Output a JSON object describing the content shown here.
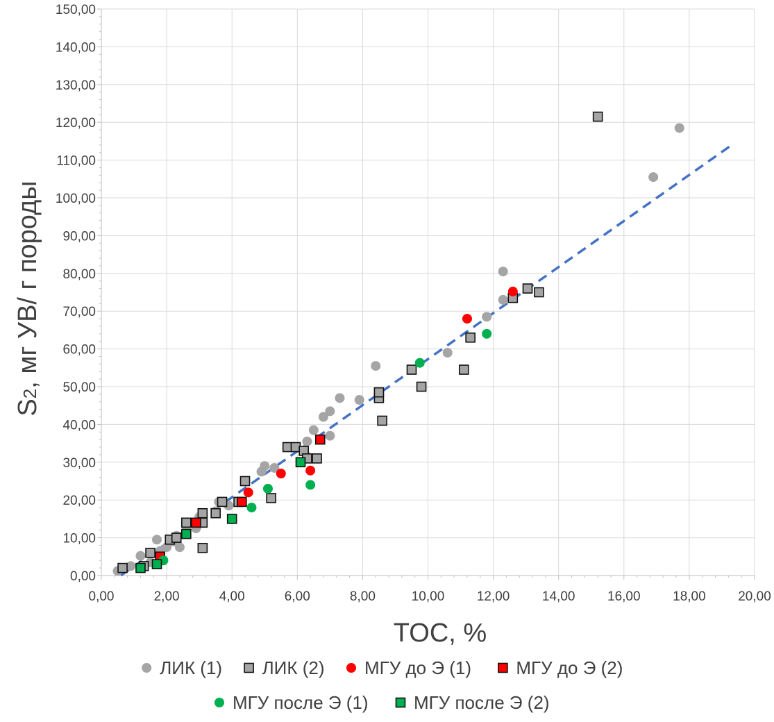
{
  "chart_data": {
    "type": "scatter",
    "xlabel": "TOC, %",
    "ylabel_main": "S",
    "ylabel_sub": "2",
    "ylabel_rest": ", мг УВ/ г породы",
    "xlim": [
      0,
      20
    ],
    "ylim": [
      0,
      150
    ],
    "x_ticks": [
      "0,00",
      "2,00",
      "4,00",
      "6,00",
      "8,00",
      "10,00",
      "12,00",
      "14,00",
      "16,00",
      "18,00",
      "20,00"
    ],
    "y_ticks": [
      "0,00",
      "10,00",
      "20,00",
      "30,00",
      "40,00",
      "50,00",
      "60,00",
      "70,00",
      "80,00",
      "90,00",
      "100,00",
      "110,00",
      "120,00",
      "130,00",
      "140,00",
      "150,00"
    ],
    "grid": true,
    "legend_position": "bottom",
    "series": [
      {
        "name": "ЛИК (1)",
        "marker": "circle",
        "color": "#a5a5a5",
        "border": "none",
        "points": [
          [
            0.5,
            1.2
          ],
          [
            0.9,
            2.5
          ],
          [
            1.2,
            5.2
          ],
          [
            1.5,
            3.5
          ],
          [
            1.7,
            9.5
          ],
          [
            1.8,
            6.5
          ],
          [
            2.0,
            7.5
          ],
          [
            2.2,
            9.0
          ],
          [
            2.3,
            10.5
          ],
          [
            2.4,
            7.5
          ],
          [
            2.6,
            12.0
          ],
          [
            2.9,
            12.5
          ],
          [
            3.0,
            15.5
          ],
          [
            3.5,
            17.0
          ],
          [
            3.6,
            19.5
          ],
          [
            3.9,
            18.5
          ],
          [
            4.3,
            19.5
          ],
          [
            4.9,
            27.5
          ],
          [
            5.0,
            29.0
          ],
          [
            5.3,
            28.5
          ],
          [
            6.3,
            35.5
          ],
          [
            6.3,
            31.5
          ],
          [
            6.5,
            38.5
          ],
          [
            6.7,
            36.0
          ],
          [
            6.8,
            42.0
          ],
          [
            7.0,
            43.5
          ],
          [
            7.0,
            37.0
          ],
          [
            7.3,
            47.0
          ],
          [
            7.9,
            46.5
          ],
          [
            8.4,
            55.5
          ],
          [
            10.6,
            59.0
          ],
          [
            11.8,
            68.5
          ],
          [
            12.3,
            80.5
          ],
          [
            12.3,
            73.0
          ],
          [
            16.9,
            105.5
          ],
          [
            17.7,
            118.5
          ]
        ]
      },
      {
        "name": "ЛИК (2)",
        "marker": "square",
        "color": "#a5a5a5",
        "border": "#111111",
        "points": [
          [
            0.65,
            2.0
          ],
          [
            1.3,
            2.5
          ],
          [
            1.5,
            6.0
          ],
          [
            1.8,
            5.0
          ],
          [
            2.1,
            9.5
          ],
          [
            2.3,
            10.0
          ],
          [
            2.6,
            14.0
          ],
          [
            3.1,
            16.5
          ],
          [
            3.1,
            7.3
          ],
          [
            3.1,
            14.0
          ],
          [
            3.5,
            16.5
          ],
          [
            3.7,
            19.5
          ],
          [
            4.2,
            19.5
          ],
          [
            4.4,
            25.0
          ],
          [
            5.2,
            20.5
          ],
          [
            5.7,
            34.0
          ],
          [
            5.95,
            34.0
          ],
          [
            6.2,
            33.0
          ],
          [
            6.3,
            31.0
          ],
          [
            6.6,
            31.0
          ],
          [
            8.5,
            47.0
          ],
          [
            8.5,
            48.5
          ],
          [
            8.6,
            41.0
          ],
          [
            9.5,
            54.5
          ],
          [
            9.8,
            50.0
          ],
          [
            11.1,
            54.5
          ],
          [
            11.3,
            63.0
          ],
          [
            12.6,
            73.5
          ],
          [
            13.05,
            76.0
          ],
          [
            13.4,
            75.0
          ],
          [
            15.2,
            121.5
          ]
        ]
      },
      {
        "name": "МГУ до Э (1)",
        "marker": "circle",
        "color": "#ff0000",
        "border": "none",
        "points": [
          [
            4.5,
            22.0
          ],
          [
            5.5,
            27.0
          ],
          [
            6.4,
            27.8
          ],
          [
            11.2,
            68.0
          ],
          [
            12.6,
            75.2
          ]
        ]
      },
      {
        "name": "МГУ до Э (2)",
        "marker": "square",
        "color": "#ff0000",
        "border": "#111111",
        "points": [
          [
            1.8,
            5.0
          ],
          [
            2.9,
            14.0
          ],
          [
            4.3,
            19.5
          ],
          [
            6.7,
            36.0
          ]
        ]
      },
      {
        "name": "МГУ после Э (1)",
        "marker": "circle",
        "color": "#00b050",
        "border": "none",
        "points": [
          [
            1.9,
            4.0
          ],
          [
            4.6,
            18.0
          ],
          [
            5.1,
            23.0
          ],
          [
            6.4,
            24.0
          ],
          [
            9.75,
            56.3
          ],
          [
            11.8,
            64.0
          ]
        ]
      },
      {
        "name": "МГУ после Э (2)",
        "marker": "square",
        "color": "#00b050",
        "border": "#111111",
        "points": [
          [
            1.2,
            2.0
          ],
          [
            1.7,
            3.0
          ],
          [
            2.6,
            11.0
          ],
          [
            4.0,
            15.0
          ],
          [
            6.1,
            30.0
          ]
        ]
      }
    ],
    "trendline": {
      "style": "dashed",
      "color": "#4472c4",
      "points": [
        [
          0.6,
          0.0
        ],
        [
          19.3,
          114.0
        ]
      ]
    }
  }
}
